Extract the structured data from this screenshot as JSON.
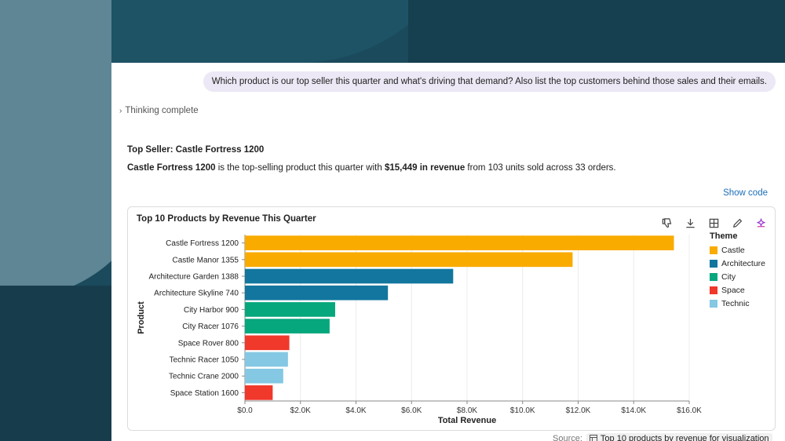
{
  "conversation": {
    "user_message": "Which product is our top seller this quarter and what's driving that demand? Also list the top customers behind those sales and their emails.",
    "thinking_label": "Thinking complete",
    "answer_title": "Top Seller: Castle Fortress 1200",
    "answer_body": {
      "product": "Castle Fortress 1200",
      "text_1": " is the top-selling product this quarter with ",
      "revenue": "$15,449 in revenue",
      "text_2": " from 103 units sold across 33 orders."
    },
    "show_code_label": "Show code"
  },
  "chart_card": {
    "toolbar": {
      "dislike_icon": "thumbs-down-icon",
      "download_icon": "download-icon",
      "table_icon": "table-icon",
      "edit_icon": "pencil-icon",
      "sparkle_icon": "sparkle-icon"
    }
  },
  "chart_data": {
    "type": "bar",
    "orientation": "horizontal",
    "title": "Top 10 Products by Revenue This Quarter",
    "xlabel": "Total Revenue",
    "ylabel": "Product",
    "xlim": [
      0,
      16000
    ],
    "x_ticks": [
      "$0.0",
      "$2.0K",
      "$4.0K",
      "$6.0K",
      "$8.0K",
      "$10.0K",
      "$12.0K",
      "$14.0K",
      "$16.0K"
    ],
    "grid": "vertical",
    "legend_title": "Theme",
    "legend_position": "right",
    "series_colors": {
      "Castle": "#f9ab00",
      "Architecture": "#12769e",
      "City": "#06a77d",
      "Space": "#f0382b",
      "Technic": "#84c8e3"
    },
    "legend": [
      "Castle",
      "Architecture",
      "City",
      "Space",
      "Technic"
    ],
    "categories": [
      "Castle Fortress 1200",
      "Castle Manor 1355",
      "Architecture Garden 1388",
      "Architecture Skyline 740",
      "City Harbor 900",
      "City Racer 1076",
      "Space Rover 800",
      "Technic Racer 1050",
      "Technic Crane 2000",
      "Space Station 1600"
    ],
    "values": [
      15449,
      11800,
      7500,
      5150,
      3250,
      3050,
      1600,
      1550,
      1380,
      1000
    ],
    "themes": [
      "Castle",
      "Castle",
      "Architecture",
      "Architecture",
      "City",
      "City",
      "Space",
      "Technic",
      "Technic",
      "Space"
    ]
  },
  "source": {
    "label": "Source:",
    "link_text": "Top 10 products by revenue for visualization",
    "icon": "table-icon"
  }
}
